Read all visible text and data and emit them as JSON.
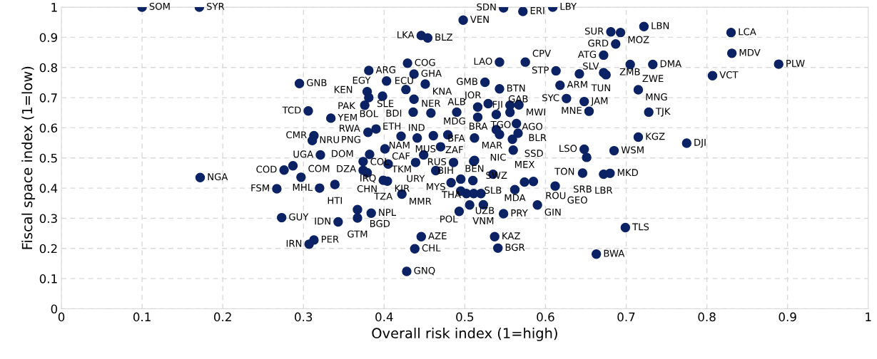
{
  "chart_data": {
    "type": "scatter",
    "xlabel": "Overall risk index (1=high)",
    "ylabel": "Fiscal space index (1=low)",
    "xlim": [
      0,
      1
    ],
    "ylim": [
      0,
      1
    ],
    "xticks": [
      0,
      0.1,
      0.2,
      0.3,
      0.4,
      0.5,
      0.6,
      0.7,
      0.8,
      0.9,
      1
    ],
    "yticks": [
      0,
      0.1,
      0.2,
      0.3,
      0.4,
      0.5,
      0.6,
      0.7,
      0.8,
      0.9,
      1
    ],
    "grid": true,
    "marker": "circle",
    "series": [
      {
        "color": "#0b2265",
        "x": [
          0.1,
          0.171,
          0.548,
          0.572,
          0.609,
          0.498,
          0.446,
          0.454,
          0.681,
          0.693,
          0.722,
          0.83,
          0.687,
          0.831,
          0.672,
          0.889,
          0.429,
          0.543,
          0.575,
          0.705,
          0.733,
          0.381,
          0.437,
          0.613,
          0.642,
          0.672,
          0.675,
          0.807,
          0.295,
          0.403,
          0.451,
          0.525,
          0.618,
          0.543,
          0.427,
          0.715,
          0.379,
          0.398,
          0.381,
          0.437,
          0.626,
          0.648,
          0.376,
          0.529,
          0.567,
          0.556,
          0.516,
          0.306,
          0.654,
          0.728,
          0.436,
          0.458,
          0.49,
          0.556,
          0.539,
          0.516,
          0.334,
          0.564,
          0.39,
          0.38,
          0.313,
          0.421,
          0.461,
          0.479,
          0.441,
          0.512,
          0.566,
          0.559,
          0.715,
          0.311,
          0.775,
          0.47,
          0.401,
          0.648,
          0.56,
          0.685,
          0.382,
          0.449,
          0.321,
          0.651,
          0.512,
          0.374,
          0.511,
          0.439,
          0.486,
          0.405,
          0.276,
          0.374,
          0.464,
          0.379,
          0.646,
          0.672,
          0.68,
          0.535,
          0.495,
          0.51,
          0.297,
          0.172,
          0.399,
          0.404,
          0.585,
          0.574,
          0.339,
          0.612,
          0.32,
          0.267,
          0.562,
          0.422,
          0.523,
          0.506,
          0.59,
          0.367,
          0.493,
          0.384,
          0.548,
          0.273,
          0.367,
          0.343,
          0.699,
          0.446,
          0.537,
          0.313,
          0.307,
          0.541,
          0.438,
          0.663,
          0.428,
          0.287,
          0.483,
          0.495,
          0.502,
          0.511,
          0.52,
          0.543,
          0.539
        ],
        "values": [
          1.0,
          1.0,
          0.998,
          0.986,
          1.0,
          0.957,
          0.906,
          0.898,
          0.918,
          0.916,
          0.936,
          0.916,
          0.878,
          0.847,
          0.841,
          0.811,
          0.814,
          0.818,
          0.818,
          0.81,
          0.81,
          0.79,
          0.778,
          0.789,
          0.779,
          0.783,
          0.776,
          0.773,
          0.747,
          0.755,
          0.745,
          0.751,
          0.741,
          0.729,
          0.727,
          0.726,
          0.72,
          0.705,
          0.7,
          0.695,
          0.697,
          0.687,
          0.675,
          0.68,
          0.676,
          0.675,
          0.669,
          0.656,
          0.655,
          0.652,
          0.652,
          0.649,
          0.652,
          0.651,
          0.644,
          0.635,
          0.632,
          0.614,
          0.596,
          0.585,
          0.574,
          0.572,
          0.574,
          0.577,
          0.566,
          0.566,
          0.582,
          0.562,
          0.569,
          0.558,
          0.549,
          0.537,
          0.53,
          0.529,
          0.526,
          0.524,
          0.512,
          0.51,
          0.51,
          0.502,
          0.492,
          0.488,
          0.489,
          0.485,
          0.485,
          0.48,
          0.46,
          0.459,
          0.458,
          0.451,
          0.45,
          0.446,
          0.449,
          0.446,
          0.43,
          0.425,
          0.436,
          0.435,
          0.426,
          0.423,
          0.422,
          0.42,
          0.412,
          0.407,
          0.4,
          0.398,
          0.395,
          0.38,
          0.345,
          0.344,
          0.344,
          0.329,
          0.323,
          0.317,
          0.315,
          0.302,
          0.301,
          0.288,
          0.269,
          0.239,
          0.239,
          0.228,
          0.214,
          0.201,
          0.199,
          0.181,
          0.124,
          0.474,
          0.418,
          0.39,
          0.382,
          0.382,
          0.382,
          0.578,
          0.594
        ]
      }
    ],
    "annotations": [
      {
        "text": "SOM",
        "x": 0.1,
        "y": 1.0
      },
      {
        "text": "SYR",
        "x": 0.171,
        "y": 1.0
      },
      {
        "text": "SDN",
        "x": 0.548,
        "y": 0.998
      },
      {
        "text": "ERI",
        "x": 0.572,
        "y": 0.986
      },
      {
        "text": "LBY",
        "x": 0.609,
        "y": 1.0
      },
      {
        "text": "VEN",
        "x": 0.498,
        "y": 0.957
      },
      {
        "text": "LKA",
        "x": 0.446,
        "y": 0.906
      },
      {
        "text": "BLZ",
        "x": 0.454,
        "y": 0.898
      },
      {
        "text": "SUR",
        "x": 0.681,
        "y": 0.918
      },
      {
        "text": "MOZ",
        "x": 0.693,
        "y": 0.916
      },
      {
        "text": "LBN",
        "x": 0.722,
        "y": 0.936
      },
      {
        "text": "LCA",
        "x": 0.83,
        "y": 0.916
      },
      {
        "text": "GRD",
        "x": 0.687,
        "y": 0.878
      },
      {
        "text": "MDV",
        "x": 0.831,
        "y": 0.847
      },
      {
        "text": "ATG",
        "x": 0.672,
        "y": 0.841
      },
      {
        "text": "PLW",
        "x": 0.889,
        "y": 0.811
      },
      {
        "text": "COG",
        "x": 0.429,
        "y": 0.814
      },
      {
        "text": "LAO",
        "x": 0.543,
        "y": 0.818
      },
      {
        "text": "CPV",
        "x": 0.575,
        "y": 0.818
      },
      {
        "text": "ZWE",
        "x": 0.705,
        "y": 0.81
      },
      {
        "text": "DMA",
        "x": 0.733,
        "y": 0.81
      },
      {
        "text": "ARG",
        "x": 0.381,
        "y": 0.79
      },
      {
        "text": "GHA",
        "x": 0.437,
        "y": 0.778
      },
      {
        "text": "STP",
        "x": 0.613,
        "y": 0.789
      },
      {
        "text": "TUN",
        "x": 0.642,
        "y": 0.779
      },
      {
        "text": "ZMB",
        "x": 0.672,
        "y": 0.783
      },
      {
        "text": "SLV",
        "x": 0.675,
        "y": 0.776
      },
      {
        "text": "VCT",
        "x": 0.807,
        "y": 0.773
      },
      {
        "text": "GNB",
        "x": 0.295,
        "y": 0.747
      },
      {
        "text": "EGY",
        "x": 0.403,
        "y": 0.755
      },
      {
        "text": "KNA",
        "x": 0.451,
        "y": 0.745
      },
      {
        "text": "GMB",
        "x": 0.525,
        "y": 0.751
      },
      {
        "text": "ARM",
        "x": 0.618,
        "y": 0.741
      },
      {
        "text": "BTN",
        "x": 0.543,
        "y": 0.729
      },
      {
        "text": "SLE",
        "x": 0.427,
        "y": 0.727
      },
      {
        "text": "MNG",
        "x": 0.715,
        "y": 0.726
      },
      {
        "text": "PAK",
        "x": 0.379,
        "y": 0.72
      },
      {
        "text": "ECU",
        "x": 0.398,
        "y": 0.705
      },
      {
        "text": "BOL",
        "x": 0.381,
        "y": 0.7
      },
      {
        "text": "BDI",
        "x": 0.437,
        "y": 0.695
      },
      {
        "text": "SYC",
        "x": 0.626,
        "y": 0.697
      },
      {
        "text": "JAM",
        "x": 0.648,
        "y": 0.687
      },
      {
        "text": "KEN",
        "x": 0.376,
        "y": 0.675
      },
      {
        "text": "JOR",
        "x": 0.529,
        "y": 0.68
      },
      {
        "text": "MWI",
        "x": 0.567,
        "y": 0.676
      },
      {
        "text": "FJI",
        "x": 0.556,
        "y": 0.675
      },
      {
        "text": "MDG",
        "x": 0.516,
        "y": 0.669
      },
      {
        "text": "TCD",
        "x": 0.306,
        "y": 0.656
      },
      {
        "text": "MNE",
        "x": 0.654,
        "y": 0.655
      },
      {
        "text": "TJK",
        "x": 0.728,
        "y": 0.652
      },
      {
        "text": "ETH",
        "x": 0.436,
        "y": 0.652
      },
      {
        "text": "NER",
        "x": 0.458,
        "y": 0.649
      },
      {
        "text": "BRA",
        "x": 0.49,
        "y": 0.652
      },
      {
        "text": "AGO",
        "x": 0.556,
        "y": 0.651
      },
      {
        "text": "GAB",
        "x": 0.539,
        "y": 0.644
      },
      {
        "text": "ALB",
        "x": 0.516,
        "y": 0.635
      },
      {
        "text": "YEM",
        "x": 0.334,
        "y": 0.632
      },
      {
        "text": "BLR",
        "x": 0.564,
        "y": 0.614
      },
      {
        "text": "RWA",
        "x": 0.39,
        "y": 0.596
      },
      {
        "text": "PNG",
        "x": 0.38,
        "y": 0.585
      },
      {
        "text": "CMR",
        "x": 0.313,
        "y": 0.574
      },
      {
        "text": "IND",
        "x": 0.421,
        "y": 0.572
      },
      {
        "text": "ZAF",
        "x": 0.461,
        "y": 0.574
      },
      {
        "text": "MUS",
        "x": 0.479,
        "y": 0.577
      },
      {
        "text": "NAM",
        "x": 0.441,
        "y": 0.566
      },
      {
        "text": "MAR",
        "x": 0.512,
        "y": 0.566
      },
      {
        "text": "TGO",
        "x": 0.566,
        "y": 0.582
      },
      {
        "text": "SSD",
        "x": 0.559,
        "y": 0.562
      },
      {
        "text": "KGZ",
        "x": 0.715,
        "y": 0.569
      },
      {
        "text": "NRU",
        "x": 0.311,
        "y": 0.558
      },
      {
        "text": "DJI",
        "x": 0.775,
        "y": 0.549
      },
      {
        "text": "BFA",
        "x": 0.47,
        "y": 0.537
      },
      {
        "text": "CAF",
        "x": 0.401,
        "y": 0.53
      },
      {
        "text": "LSO",
        "x": 0.648,
        "y": 0.529
      },
      {
        "text": "NIC",
        "x": 0.56,
        "y": 0.526
      },
      {
        "text": "WSM",
        "x": 0.685,
        "y": 0.524
      },
      {
        "text": "DOM",
        "x": 0.382,
        "y": 0.512
      },
      {
        "text": "TKM",
        "x": 0.449,
        "y": 0.51
      },
      {
        "text": "UGA",
        "x": 0.321,
        "y": 0.51
      },
      {
        "text": "TON",
        "x": 0.651,
        "y": 0.502
      },
      {
        "text": "BEN",
        "x": 0.512,
        "y": 0.492
      },
      {
        "text": "DZA",
        "x": 0.374,
        "y": 0.488
      },
      {
        "text": "SWZ",
        "x": 0.511,
        "y": 0.489
      },
      {
        "text": "URY",
        "x": 0.439,
        "y": 0.485
      },
      {
        "text": "RUS",
        "x": 0.486,
        "y": 0.485
      },
      {
        "text": "IRQ",
        "x": 0.405,
        "y": 0.48
      },
      {
        "text": "COD",
        "x": 0.276,
        "y": 0.46
      },
      {
        "text": "COL",
        "x": 0.374,
        "y": 0.459
      },
      {
        "text": "MYS",
        "x": 0.464,
        "y": 0.458
      },
      {
        "text": "CHN",
        "x": 0.379,
        "y": 0.451
      },
      {
        "text": "SRB",
        "x": 0.646,
        "y": 0.45
      },
      {
        "text": "LBR",
        "x": 0.672,
        "y": 0.446
      },
      {
        "text": "MKD",
        "x": 0.68,
        "y": 0.449
      },
      {
        "text": "SLB",
        "x": 0.535,
        "y": 0.446
      },
      {
        "text": "BIH",
        "x": 0.495,
        "y": 0.43
      },
      {
        "text": "THA",
        "x": 0.51,
        "y": 0.425
      },
      {
        "text": "COM",
        "x": 0.297,
        "y": 0.436
      },
      {
        "text": "NGA",
        "x": 0.172,
        "y": 0.435
      },
      {
        "text": "TZA",
        "x": 0.399,
        "y": 0.426
      },
      {
        "text": "KIR",
        "x": 0.404,
        "y": 0.423
      },
      {
        "text": "ROU",
        "x": 0.585,
        "y": 0.422
      },
      {
        "text": "MEX",
        "x": 0.574,
        "y": 0.42
      },
      {
        "text": "HTI",
        "x": 0.339,
        "y": 0.412
      },
      {
        "text": "GEO",
        "x": 0.612,
        "y": 0.407
      },
      {
        "text": "MHL",
        "x": 0.32,
        "y": 0.4
      },
      {
        "text": "FSM",
        "x": 0.267,
        "y": 0.398
      },
      {
        "text": "MDA",
        "x": 0.562,
        "y": 0.395
      },
      {
        "text": "MMR",
        "x": 0.422,
        "y": 0.38
      },
      {
        "text": "VNM",
        "x": 0.523,
        "y": 0.345
      },
      {
        "text": "POL",
        "x": 0.506,
        "y": 0.344
      },
      {
        "text": "GIN",
        "x": 0.59,
        "y": 0.344
      },
      {
        "text": "BGD",
        "x": 0.367,
        "y": 0.329
      },
      {
        "text": "UZB",
        "x": 0.493,
        "y": 0.323
      },
      {
        "text": "NPL",
        "x": 0.384,
        "y": 0.317
      },
      {
        "text": "PRY",
        "x": 0.548,
        "y": 0.315
      },
      {
        "text": "GUY",
        "x": 0.273,
        "y": 0.302
      },
      {
        "text": "GTM",
        "x": 0.367,
        "y": 0.301
      },
      {
        "text": "IDN",
        "x": 0.343,
        "y": 0.288
      },
      {
        "text": "TLS",
        "x": 0.699,
        "y": 0.269
      },
      {
        "text": "AZE",
        "x": 0.446,
        "y": 0.239
      },
      {
        "text": "KAZ",
        "x": 0.537,
        "y": 0.239
      },
      {
        "text": "PER",
        "x": 0.313,
        "y": 0.228
      },
      {
        "text": "IRN",
        "x": 0.307,
        "y": 0.214
      },
      {
        "text": "BGR",
        "x": 0.541,
        "y": 0.201
      },
      {
        "text": "CHL",
        "x": 0.438,
        "y": 0.199
      },
      {
        "text": "BWA",
        "x": 0.663,
        "y": 0.181
      },
      {
        "text": "GNQ",
        "x": 0.428,
        "y": 0.124
      }
    ]
  }
}
